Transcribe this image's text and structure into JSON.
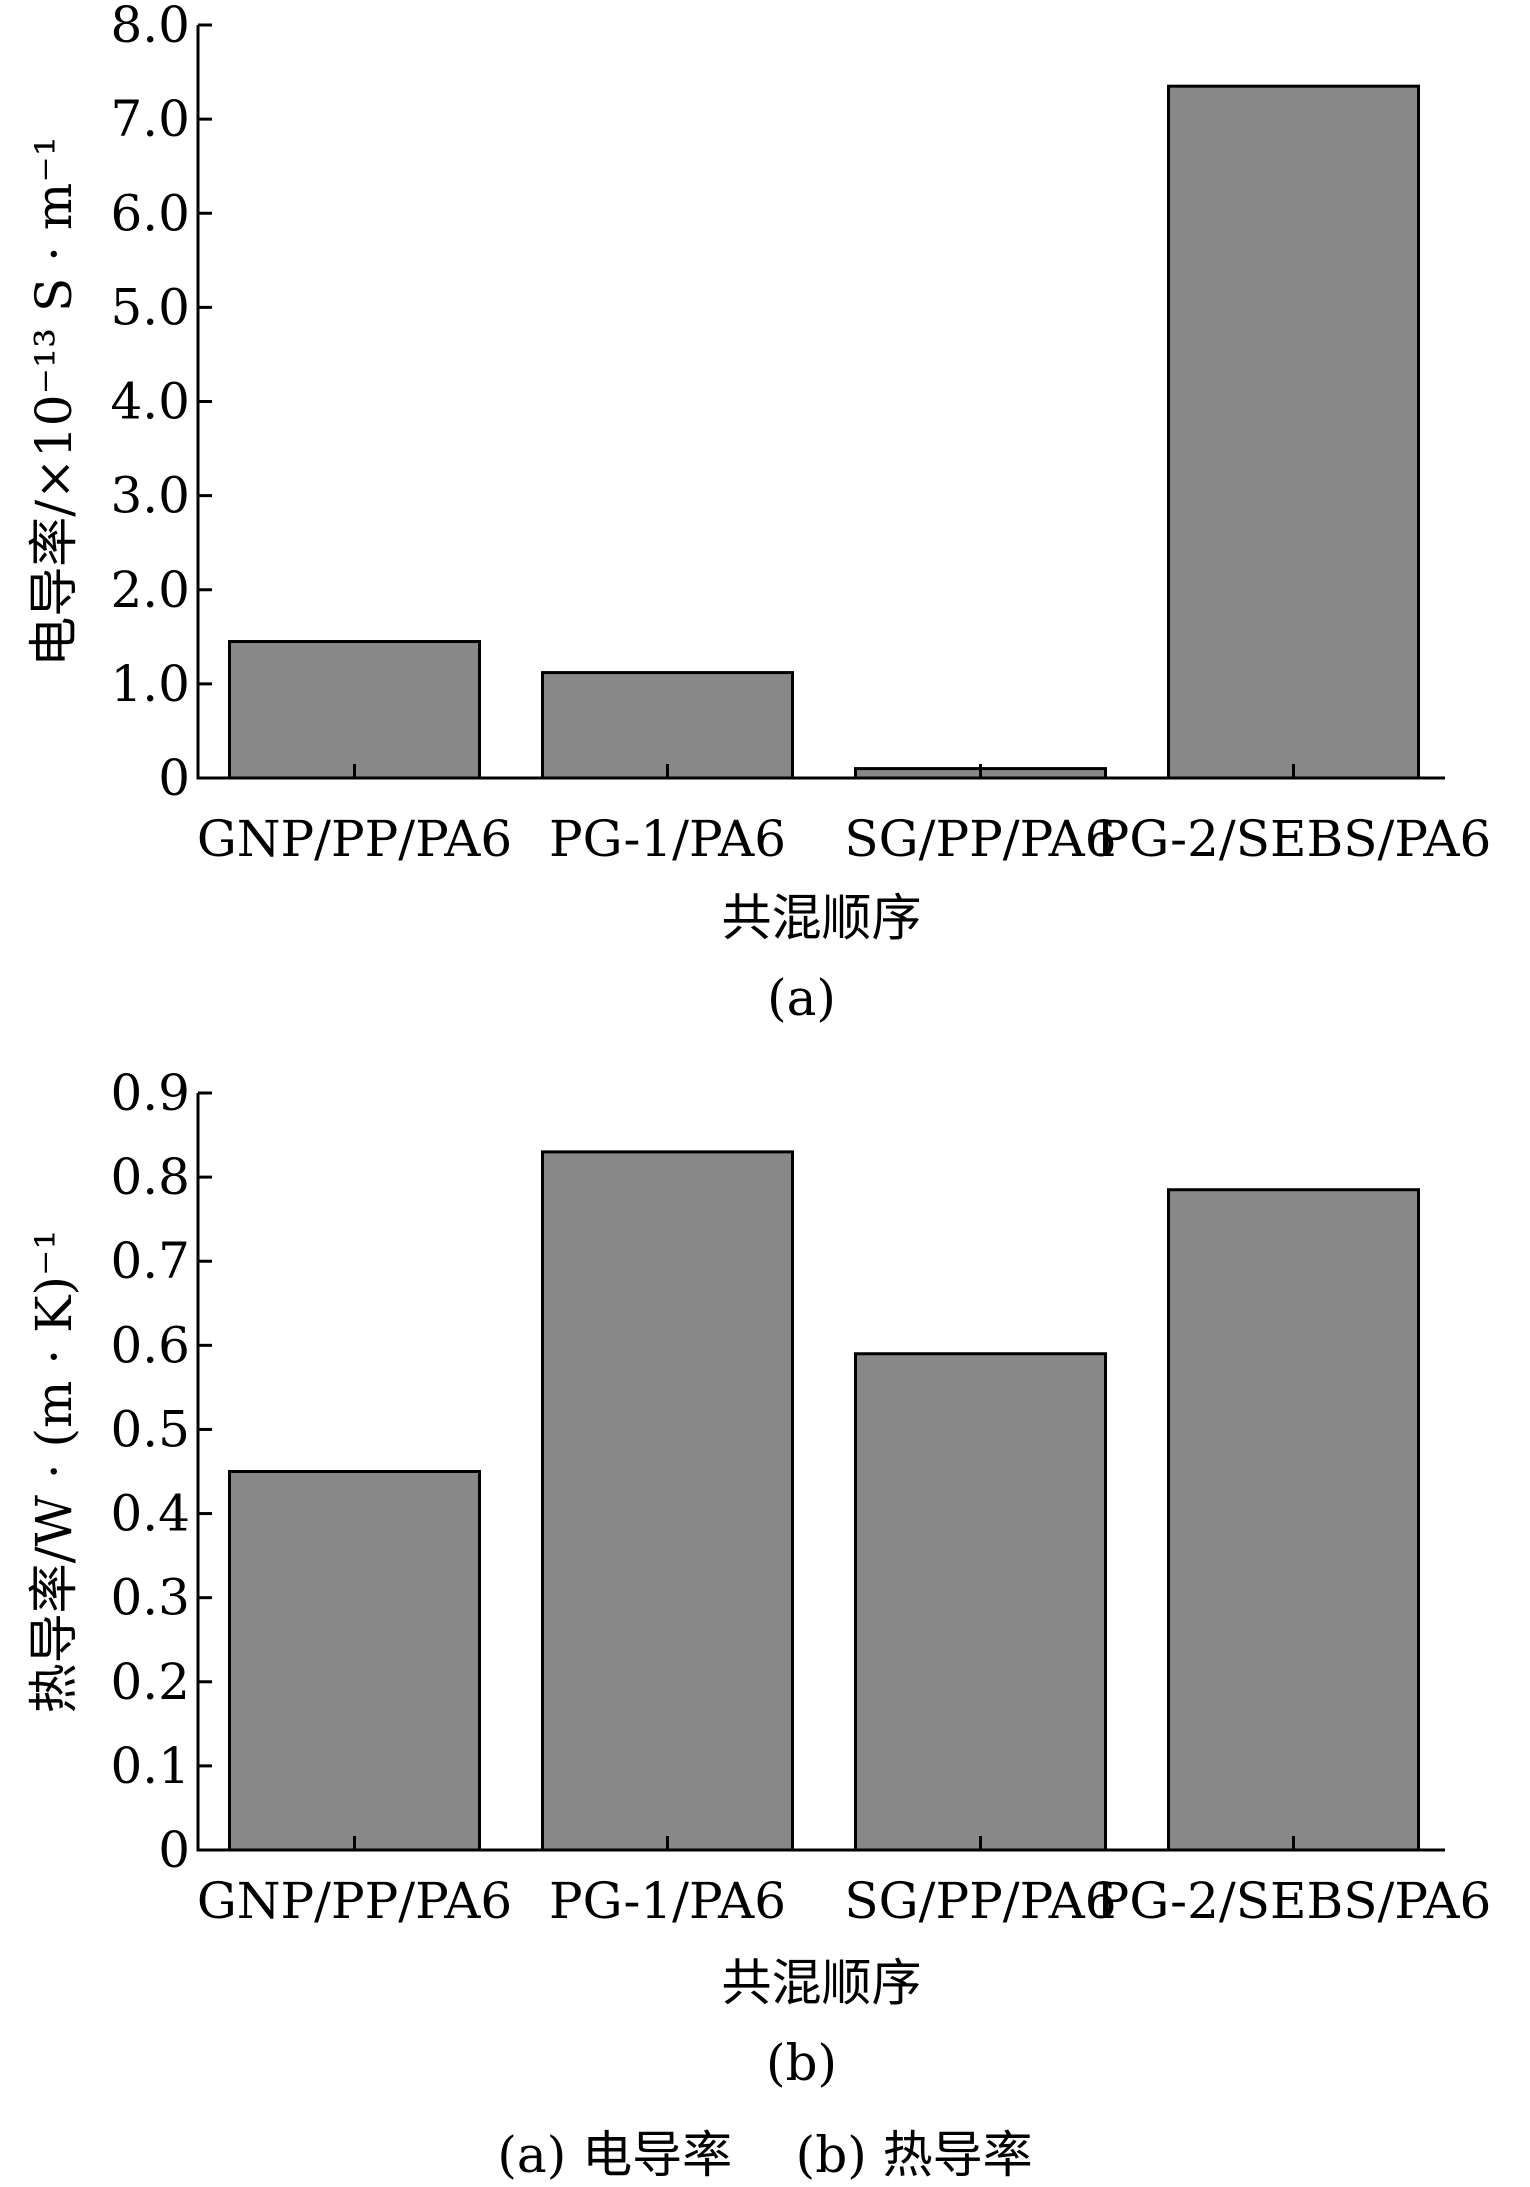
{
  "chart_data": [
    {
      "type": "bar",
      "panel_label": "(a)",
      "categories": [
        "GNP/PP/PA6",
        "PG-1/PA6",
        "SG/PP/PA6",
        "PG-2/SEBS/PA6"
      ],
      "values": [
        1.45,
        1.12,
        0.1,
        7.35
      ],
      "xlabel": "共混顺序",
      "ylabel": "电导率/×10⁻¹³ S · m⁻¹",
      "ylim": [
        0,
        8.0
      ],
      "yticks": [
        "0",
        "1.0",
        "2.0",
        "3.0",
        "4.0",
        "5.0",
        "6.0",
        "7.0",
        "8.0"
      ],
      "bar_color": "#888888",
      "grid": false
    },
    {
      "type": "bar",
      "panel_label": "(b)",
      "categories": [
        "GNP/PP/PA6",
        "PG-1/PA6",
        "SG/PP/PA6",
        "PG-2/SEBS/PA6"
      ],
      "values": [
        0.45,
        0.83,
        0.59,
        0.785
      ],
      "xlabel": "共混顺序",
      "ylabel": "热导率/W · (m · K)⁻¹",
      "ylim": [
        0,
        0.9
      ],
      "yticks": [
        "0",
        "0.1",
        "0.2",
        "0.3",
        "0.4",
        "0.5",
        "0.6",
        "0.7",
        "0.8",
        "0.9"
      ],
      "bar_color": "#888888",
      "grid": false
    }
  ],
  "caption": "(a) 电导率    (b) 热导率"
}
